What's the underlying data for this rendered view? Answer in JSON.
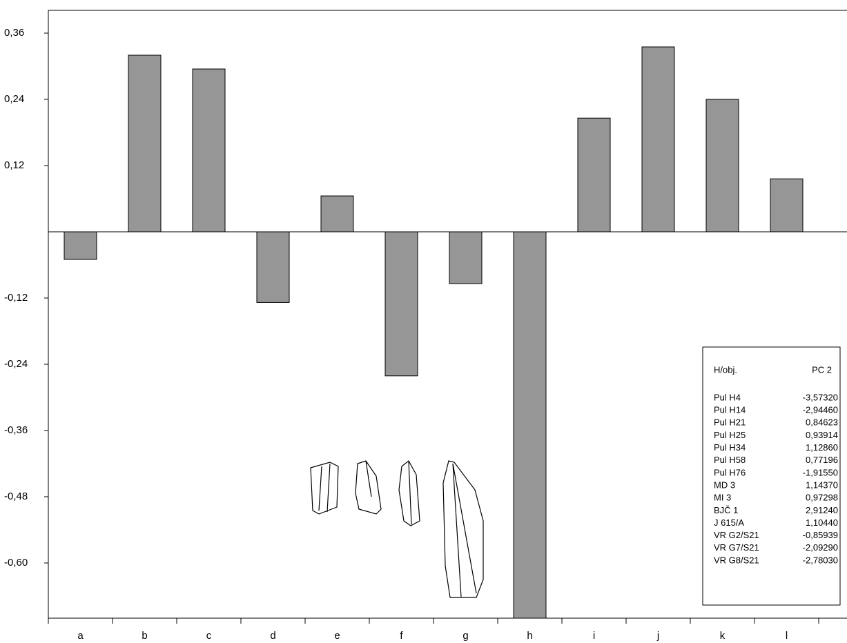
{
  "chart_data": {
    "type": "bar",
    "categories": [
      "a",
      "b",
      "c",
      "d",
      "e",
      "f",
      "g",
      "h",
      "i",
      "j",
      "k",
      "l"
    ],
    "values": [
      -0.05,
      0.32,
      0.295,
      -0.128,
      0.065,
      -0.261,
      -0.094,
      -0.7,
      0.206,
      0.335,
      0.24,
      0.096
    ],
    "color": "#969696",
    "ylim": [
      -0.7,
      0.40125
    ],
    "yticks": [
      {
        "value": 0.36,
        "label": "0,36"
      },
      {
        "value": 0.24,
        "label": "0,24"
      },
      {
        "value": 0.12,
        "label": "0,12"
      },
      {
        "value": -0.12,
        "label": "-0,12"
      },
      {
        "value": -0.24,
        "label": "-0,24"
      },
      {
        "value": -0.36,
        "label": "-0,36"
      },
      {
        "value": -0.48,
        "label": "-0,48"
      },
      {
        "value": -0.6,
        "label": "-0,60"
      }
    ],
    "table": {
      "header": [
        "H/obj.",
        "PC 2"
      ],
      "rows": [
        [
          "Pul H4",
          "-3,57320"
        ],
        [
          "Pul H14",
          "-2,94460"
        ],
        [
          "Pul H21",
          "0,84623"
        ],
        [
          "Pul H25",
          "0,93914"
        ],
        [
          "Pul H34",
          "1,12860"
        ],
        [
          "Pul H58",
          "0,77196"
        ],
        [
          "Pul H76",
          "-1,91550"
        ],
        [
          "MD 3",
          "1,14370"
        ],
        [
          "MI 3",
          "0,97298"
        ],
        [
          "BJČ 1",
          "2,91240"
        ],
        [
          "J 615/A",
          "1,10440"
        ],
        [
          "VR G2/S21",
          "-0,85939"
        ],
        [
          "VR G7/S21",
          "-2,09290"
        ],
        [
          "VR G8/S21",
          "-2,78030"
        ]
      ]
    }
  }
}
